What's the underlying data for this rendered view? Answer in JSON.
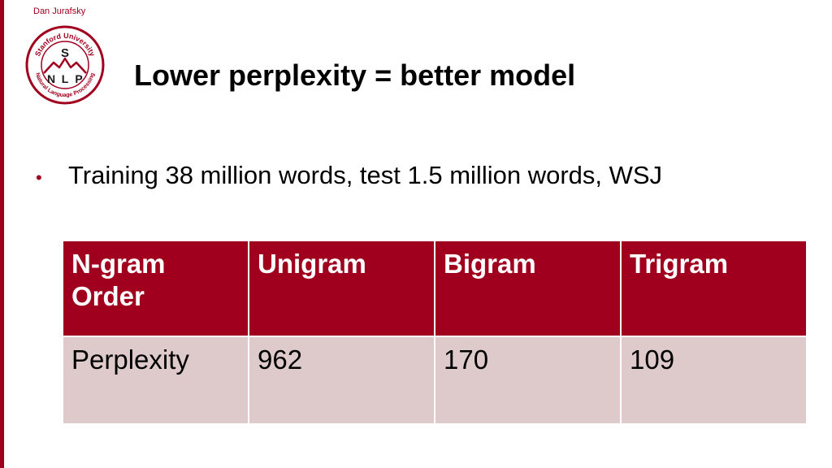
{
  "author": "Dan Jurafsky",
  "logo": {
    "top_text": "Stanford University",
    "bottom_text": "Natural Language Processing",
    "center_letter": "S",
    "side_letters": [
      "N",
      "L",
      "P"
    ],
    "accent_color": "#a0001e"
  },
  "title": "Lower perplexity = better model",
  "bullet": "Training 38 million words, test 1.5 million words, WSJ",
  "table": {
    "header": [
      "N-gram Order",
      "Unigram",
      "Bigram",
      "Trigram"
    ],
    "rows": [
      [
        "Perplexity",
        "962",
        "170",
        "109"
      ]
    ]
  },
  "colors": {
    "accent": "#a0001e",
    "table_body": "#dfcacb"
  }
}
